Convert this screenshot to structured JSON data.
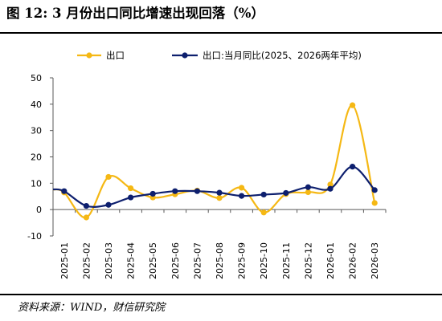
{
  "header": {
    "title": "图 12:  3 月份出口同比增速出现回落（%）"
  },
  "footer": {
    "source": "资料来源：WIND，财信研究院"
  },
  "colors": {
    "series_1": "#F5B814",
    "series_2": "#0D1F6E",
    "axis": "#595959"
  },
  "chart_data": {
    "type": "line",
    "categories": [
      "2025-01",
      "2025-02",
      "2025-03",
      "2025-04",
      "2025-05",
      "2025-06",
      "2025-07",
      "2025-08",
      "2025-09",
      "2025-10",
      "2025-11",
      "2025-12",
      "2026-01",
      "2026-02",
      "2026-03"
    ],
    "series": [
      {
        "name": "出口",
        "values": [
          6.5,
          -3.0,
          12.4,
          8.1,
          4.6,
          5.8,
          7.2,
          4.4,
          8.3,
          -1.1,
          5.9,
          6.6,
          9.5,
          39.6,
          2.5
        ]
      },
      {
        "name": "出口:当月同比(2025、2026两年平均)",
        "values": [
          7.0,
          1.4,
          1.8,
          4.6,
          6.0,
          7.0,
          7.0,
          6.4,
          5.2,
          5.7,
          6.3,
          8.5,
          7.9,
          16.3,
          7.4
        ]
      }
    ],
    "ylim": [
      -10,
      50
    ],
    "yticks": [
      -10,
      0,
      10,
      20,
      30,
      40,
      50
    ],
    "xlabel": "",
    "ylabel": "",
    "smooth": true,
    "grid": false,
    "legend_position": "top"
  }
}
